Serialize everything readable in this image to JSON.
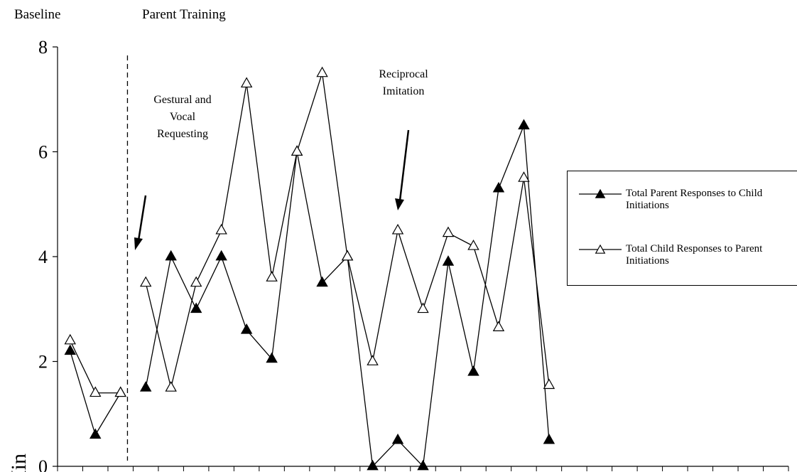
{
  "chart_data": {
    "type": "line",
    "y_label": "Min",
    "phases": [
      {
        "label": "Baseline",
        "start": 0,
        "end": 2
      },
      {
        "label": "Parent Training",
        "start": 3,
        "end": 28
      }
    ],
    "annotations": [
      {
        "lines": [
          "Gestural and",
          "Vocal",
          "Requesting"
        ]
      },
      {
        "lines": [
          "Reciprocal",
          "Imitation"
        ]
      }
    ],
    "categories": [
      null,
      null,
      null,
      null,
      null,
      null,
      null,
      null,
      null,
      null,
      null,
      null,
      null,
      null,
      null,
      null,
      null,
      null,
      null,
      null,
      null,
      null,
      null,
      null,
      null,
      null,
      null,
      null,
      null
    ],
    "series": [
      {
        "name": "Total Parent Responses to Child Initiations",
        "color": "#000000",
        "marker": "filled-triangle",
        "values": [
          2.2,
          0.6,
          1.4,
          1.5,
          4.0,
          3.0,
          4.0,
          2.6,
          2.05,
          6.0,
          3.5,
          4.0,
          0,
          0.5,
          0,
          3.9,
          1.8,
          5.3,
          6.5,
          0.5,
          null,
          null,
          null,
          null,
          null,
          null,
          null,
          null,
          null
        ]
      },
      {
        "name": "Total Child Responses to Parent Initiations",
        "color": "#000000",
        "marker": "open-triangle",
        "values": [
          2.4,
          1.4,
          1.4,
          3.5,
          1.5,
          3.5,
          4.5,
          7.3,
          3.6,
          6.0,
          7.5,
          4.0,
          2.0,
          4.5,
          3.0,
          4.45,
          4.2,
          2.65,
          5.5,
          1.55,
          null,
          null,
          null,
          null,
          null,
          null,
          null,
          null,
          null
        ]
      }
    ],
    "ylim": [
      0,
      8
    ],
    "yticks": [
      0,
      2,
      4,
      6,
      8
    ]
  }
}
